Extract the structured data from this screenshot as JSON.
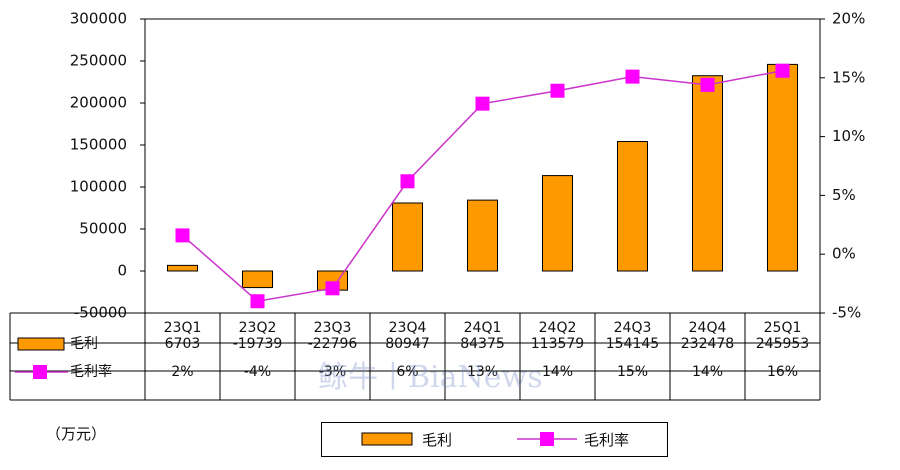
{
  "unit_label": "（万元）",
  "watermark": "鲸牛丨BiaNews",
  "colors": {
    "bar": "#ff9900",
    "line": "#cc33cc",
    "marker": "#ff00ff"
  },
  "chart_data": {
    "type": "bar",
    "categories": [
      "23Q1",
      "23Q2",
      "23Q3",
      "23Q4",
      "24Q1",
      "24Q2",
      "24Q3",
      "24Q4",
      "25Q1"
    ],
    "series": [
      {
        "name": "毛利",
        "type": "bar",
        "axis": "left",
        "values": [
          6703,
          -19739,
          -22796,
          80947,
          84375,
          113579,
          154145,
          232478,
          245953
        ],
        "labels": [
          "6703",
          "-19739",
          "-22796",
          "80947",
          "84375",
          "113579",
          "154145",
          "232478",
          "245953"
        ]
      },
      {
        "name": "毛利率",
        "type": "line",
        "axis": "right",
        "values": [
          1.6,
          -4.0,
          -2.9,
          6.2,
          12.8,
          13.9,
          15.1,
          14.4,
          15.6
        ],
        "labels": [
          "2%",
          "-4%",
          "-3%",
          "6%",
          "13%",
          "14%",
          "15%",
          "14%",
          "16%"
        ]
      }
    ],
    "y_left": {
      "min": -50000,
      "max": 300000,
      "ticks": [
        "300000",
        "250000",
        "200000",
        "150000",
        "100000",
        "50000",
        "0",
        "-50000"
      ]
    },
    "y_right": {
      "min": -5,
      "max": 20,
      "ticks": [
        "20%",
        "15%",
        "10%",
        "5%",
        "0%",
        "-5%"
      ]
    },
    "grid": false,
    "legend": "bottom"
  }
}
